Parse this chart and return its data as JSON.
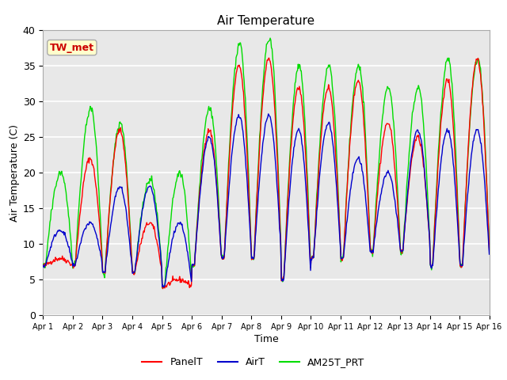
{
  "title": "Air Temperature",
  "xlabel": "Time",
  "ylabel": "Air Temperature (C)",
  "ylim": [
    0,
    40
  ],
  "xlim_days": 15,
  "plot_bg_color": "#e8e8e8",
  "grid_color": "white",
  "annotation_text": "TW_met",
  "annotation_bg": "#ffffcc",
  "annotation_border": "#aaaaaa",
  "annotation_text_color": "#cc0000",
  "series": {
    "PanelT": {
      "color": "#ff0000",
      "lw": 1.0
    },
    "AirT": {
      "color": "#0000cc",
      "lw": 1.0
    },
    "AM25T_PRT": {
      "color": "#00dd00",
      "lw": 1.0
    }
  },
  "xtick_labels": [
    "Apr 1",
    "Apr 2",
    "Apr 3",
    "Apr 4",
    "Apr 5",
    "Apr 6",
    "Apr 7",
    "Apr 8",
    "Apr 9",
    "Apr 10",
    "Apr 11",
    "Apr 12",
    "Apr 13",
    "Apr 14",
    "Apr 15",
    "Apr 16"
  ],
  "ytick_values": [
    0,
    5,
    10,
    15,
    20,
    25,
    30,
    35,
    40
  ],
  "daily_max_panel": [
    8,
    22,
    26,
    13,
    5,
    26,
    35,
    36,
    32,
    32,
    33,
    27,
    25,
    33,
    36
  ],
  "daily_max_air": [
    12,
    13,
    18,
    18,
    13,
    25,
    28,
    28,
    26,
    27,
    22,
    20,
    26,
    26,
    26
  ],
  "daily_max_green": [
    20,
    29,
    27,
    19,
    20,
    29,
    38,
    39,
    35,
    35,
    35,
    32,
    32,
    36,
    36
  ],
  "daily_min_all": [
    7,
    7,
    6,
    6,
    4,
    7,
    8,
    8,
    5,
    8,
    8,
    9,
    9,
    7,
    7
  ]
}
